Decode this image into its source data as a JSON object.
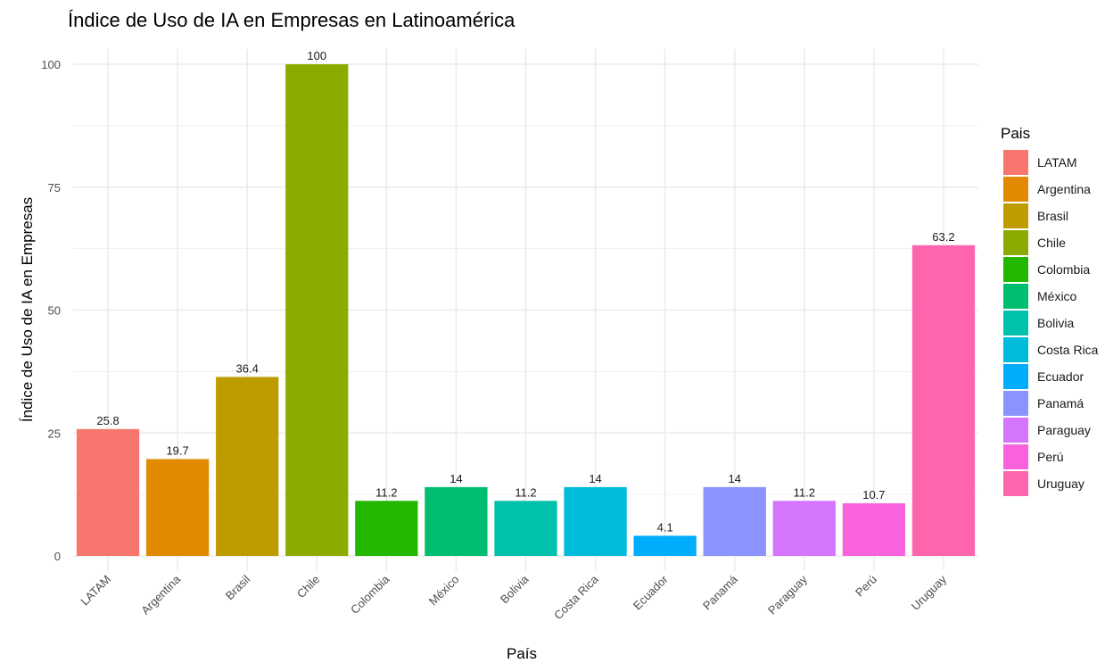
{
  "chart_data": {
    "type": "bar",
    "title": "Índice de Uso de IA en Empresas en Latinoamérica",
    "xlabel": "País",
    "ylabel": "Índice de Uso de IA en Empresas",
    "ylim": [
      0,
      100
    ],
    "yticks": [
      0,
      25,
      50,
      75,
      100
    ],
    "grid": true,
    "legend": {
      "title": "Pais",
      "placement": "right"
    },
    "categories": [
      "LATAM",
      "Argentina",
      "Brasil",
      "Chile",
      "Colombia",
      "México",
      "Bolivia",
      "Costa Rica",
      "Ecuador",
      "Panamá",
      "Paraguay",
      "Perú",
      "Uruguay"
    ],
    "values": [
      25.8,
      19.7,
      36.4,
      100,
      11.2,
      14,
      11.2,
      14,
      4.1,
      14,
      11.2,
      10.7,
      63.2
    ],
    "value_labels": [
      "25.8",
      "19.7",
      "36.4",
      "100",
      "11.2",
      "14",
      "11.2",
      "14",
      "4.1",
      "14",
      "11.2",
      "10.7",
      "63.2"
    ],
    "colors": [
      "#F8766D",
      "#E18A00",
      "#BE9C00",
      "#8CAB00",
      "#24B700",
      "#00BE70",
      "#00C1AB",
      "#00BBDA",
      "#00ACFC",
      "#8B93FF",
      "#D575FE",
      "#F962DD",
      "#FF65AC"
    ]
  }
}
